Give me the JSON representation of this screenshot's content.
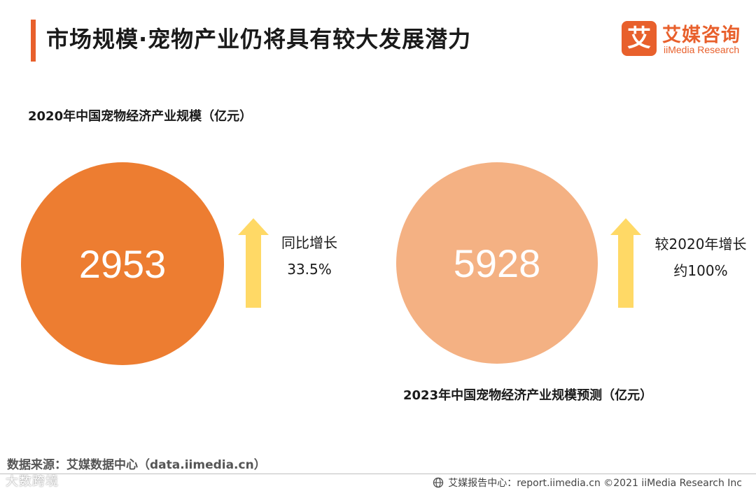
{
  "header": {
    "title": "市场规模·宠物产业仍将具有较大发展潜力",
    "logo_mark": "艾",
    "logo_name": "艾媒咨询",
    "logo_sub": "iiMedia Research"
  },
  "chart_data": {
    "type": "bubble",
    "series": [
      {
        "label": "2020年中国宠物经济产业规模（亿元）",
        "year": 2020,
        "value": 2953,
        "unit": "亿元",
        "color": "#ed7d31",
        "note_line1": "同比增长",
        "note_line2": "33.5%"
      },
      {
        "label": "2023年中国宠物经济产业规模预测（亿元）",
        "year": 2023,
        "value": 5928,
        "unit": "亿元",
        "color": "#f4b183",
        "note_line1": "较2020年增长",
        "note_line2": "约100%"
      }
    ],
    "arrow_color": "#ffd966"
  },
  "footer": {
    "source": "数据来源：艾媒数据中心（data.iimedia.cn）",
    "watermark": "大数跨境",
    "report": "艾媒报告中心：report.iimedia.cn ©2021  iiMedia Research  Inc"
  }
}
